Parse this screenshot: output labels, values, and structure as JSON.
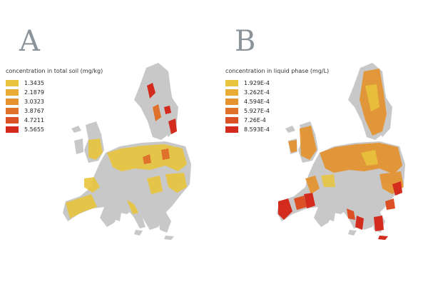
{
  "panel_a": {
    "letter": "A",
    "legend": {
      "title": "concentration in total soil (mg/kg)",
      "items": [
        {
          "label": "1.3435",
          "color": "#e8c53c"
        },
        {
          "label": "2.1879",
          "color": "#e8ab34"
        },
        {
          "label": "3.0323",
          "color": "#e5922f"
        },
        {
          "label": "3.8767",
          "color": "#e0712a"
        },
        {
          "label": "4.7211",
          "color": "#db5125"
        },
        {
          "label": "5.5655",
          "color": "#d42b1f"
        }
      ]
    }
  },
  "panel_b": {
    "letter": "B",
    "legend": {
      "title": "concentration in liquid phase (mg/L)",
      "items": [
        {
          "label": "1.929E-4",
          "color": "#e8c53c"
        },
        {
          "label": "3.262E-4",
          "color": "#e8ab34"
        },
        {
          "label": "4.594E-4",
          "color": "#e5922f"
        },
        {
          "label": "5.927E-4",
          "color": "#e0712a"
        },
        {
          "label": "7.26E-4",
          "color": "#db5125"
        },
        {
          "label": "8.593E-4",
          "color": "#d42b1f"
        }
      ]
    }
  },
  "land_color": "#c8c8c8"
}
